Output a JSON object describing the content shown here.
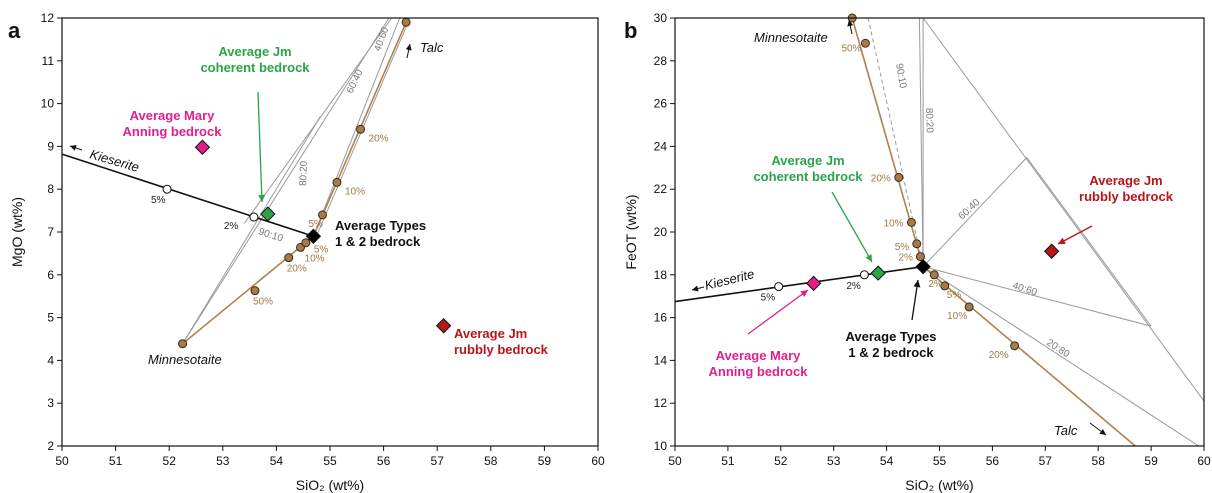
{
  "colors": {
    "frame": "#111111",
    "grid_line": "#9a9a9a",
    "talc_line": "#b0824f",
    "talc_dot": "#a57b4e",
    "kieserite_line": "#111111",
    "mary_anning": "#e0208a",
    "jm_coherent": "#2aa44a",
    "jm_rubbly": "#b5161c",
    "types12": "#000000"
  },
  "chart_data": [
    {
      "panel": "a",
      "type": "scatter",
      "xlabel": "SiO₂ (wt%)",
      "ylabel": "MgO (wt%)",
      "xlim": [
        50,
        60
      ],
      "ylim": [
        2,
        12
      ],
      "xticks": [
        "50",
        "51",
        "52",
        "53",
        "54",
        "55",
        "56",
        "57",
        "58",
        "59",
        "60"
      ],
      "yticks": [
        "2",
        "3",
        "4",
        "5",
        "6",
        "7",
        "8",
        "9",
        "10",
        "11",
        "12"
      ],
      "points": [
        {
          "id": "mary",
          "label_lines": [
            "Average Mary",
            "Anning bedrock"
          ],
          "x": 52.62,
          "y": 8.98,
          "color": "#e0208a"
        },
        {
          "id": "coherent",
          "label_lines": [
            "Average Jm",
            "coherent bedrock"
          ],
          "x": 53.84,
          "y": 7.42,
          "color": "#2aa44a"
        },
        {
          "id": "types",
          "label_lines": [
            "Average Types",
            "1 & 2 bedrock"
          ],
          "x": 54.69,
          "y": 6.9,
          "color": "#000000"
        },
        {
          "id": "rubbly",
          "label_lines": [
            "Average Jm",
            "rubbly bedrock"
          ],
          "x": 57.12,
          "y": 4.81,
          "color": "#b5161c"
        }
      ],
      "kieserite_line": {
        "label": "Kieserite",
        "from": [
          50.0,
          8.82
        ],
        "to": [
          54.69,
          6.9
        ]
      },
      "kieserite_marks": [
        {
          "label": "5%",
          "x": 51.96,
          "y": 8.0
        },
        {
          "label": "2%",
          "x": 53.58,
          "y": 7.35
        }
      ],
      "minnesotaite_line": {
        "label": "Minnesotaite",
        "from": [
          52.25,
          4.39
        ],
        "to": [
          54.69,
          6.9
        ]
      },
      "minnesotaite_marks": [
        {
          "label": "50%",
          "x": 53.6,
          "y": 5.63
        },
        {
          "label": "20%",
          "x": 54.23,
          "y": 6.4
        },
        {
          "label": "10%",
          "x": 54.45,
          "y": 6.64
        },
        {
          "label": "5%",
          "x": 54.55,
          "y": 6.75
        }
      ],
      "talc_line": {
        "label": "Talc",
        "from": [
          54.69,
          6.9
        ],
        "to": [
          56.42,
          11.9
        ]
      },
      "talc_marks": [
        {
          "label": "5%",
          "x": 54.86,
          "y": 7.4
        },
        {
          "label": "10%",
          "x": 55.13,
          "y": 8.16
        },
        {
          "label": "20%",
          "x": 55.57,
          "y": 9.4
        },
        {
          "label": "",
          "x": 56.42,
          "y": 11.9
        }
      ],
      "mixing_lines": [
        {
          "label": "90:10",
          "from": [
            52.25,
            4.39
          ],
          "to": [
            56.1,
            12.0
          ]
        },
        {
          "label": "80:20",
          "from": [
            52.25,
            4.39
          ],
          "to": [
            54.82,
            9.7
          ]
        },
        {
          "label": "60:40",
          "from": [
            53.4,
            7.2
          ],
          "to": [
            56.15,
            12.0
          ]
        },
        {
          "label": "40:60",
          "from": [
            54.69,
            6.9
          ],
          "to": [
            56.3,
            12.0
          ]
        }
      ]
    },
    {
      "panel": "b",
      "type": "scatter",
      "xlabel": "SiO₂ (wt%)",
      "ylabel": "FeOT (wt%)",
      "xlim": [
        50,
        60
      ],
      "ylim": [
        10,
        30
      ],
      "xticks": [
        "50",
        "51",
        "52",
        "53",
        "54",
        "55",
        "56",
        "57",
        "58",
        "59",
        "60"
      ],
      "yticks": [
        "10",
        "12",
        "14",
        "16",
        "18",
        "20",
        "22",
        "24",
        "26",
        "28",
        "30"
      ],
      "points": [
        {
          "id": "mary",
          "label_lines": [
            "Average Mary",
            "Anning bedrock"
          ],
          "x": 52.62,
          "y": 17.6,
          "color": "#e0208a"
        },
        {
          "id": "coherent",
          "label_lines": [
            "Average Jm",
            "coherent bedrock"
          ],
          "x": 53.84,
          "y": 18.08,
          "color": "#2aa44a"
        },
        {
          "id": "types",
          "label_lines": [
            "Average Types",
            "1 & 2 bedrock"
          ],
          "x": 54.69,
          "y": 18.38,
          "color": "#000000"
        },
        {
          "id": "rubbly",
          "label_lines": [
            "Average Jm",
            "rubbly bedrock"
          ],
          "x": 57.12,
          "y": 19.1,
          "color": "#b5161c"
        }
      ],
      "kieserite_line": {
        "label": "Kieserite",
        "from": [
          50.0,
          16.75
        ],
        "to": [
          54.69,
          18.38
        ]
      },
      "kieserite_marks": [
        {
          "label": "5%",
          "x": 51.96,
          "y": 17.45
        },
        {
          "label": "2%",
          "x": 53.58,
          "y": 18.0
        }
      ],
      "minnesotaite_line": {
        "label": "Minnesotaite",
        "from": [
          53.35,
          30.0
        ],
        "to": [
          54.69,
          18.38
        ]
      },
      "minnesotaite_marks": [
        {
          "label": "50%",
          "x": 53.6,
          "y": 28.82
        },
        {
          "label": "20%",
          "x": 54.23,
          "y": 22.55
        },
        {
          "label": "10%",
          "x": 54.47,
          "y": 20.45
        },
        {
          "label": "5%",
          "x": 54.57,
          "y": 19.45
        },
        {
          "label": "2%",
          "x": 54.64,
          "y": 18.85
        }
      ],
      "talc_line": {
        "label": "Talc",
        "from": [
          54.69,
          18.38
        ],
        "to": [
          58.7,
          10.0
        ]
      },
      "talc_marks": [
        {
          "label": "2%",
          "x": 54.9,
          "y": 18.0
        },
        {
          "label": "5%",
          "x": 55.1,
          "y": 17.48
        },
        {
          "label": "10%",
          "x": 55.56,
          "y": 16.5
        },
        {
          "label": "20%",
          "x": 56.42,
          "y": 14.68
        }
      ],
      "mixing_lines": [
        {
          "label": "90:10",
          "from": [
            53.65,
            30.0
          ],
          "to": [
            54.69,
            18.38
          ],
          "dashed": true
        },
        {
          "label": "80:20",
          "from": [
            54.62,
            30.0
          ],
          "to": [
            54.69,
            18.38
          ]
        },
        {
          "label": "60:40",
          "from": [
            54.69,
            18.38
          ],
          "to": [
            56.65,
            23.48
          ]
        },
        {
          "label": "40:60",
          "from": [
            54.69,
            18.38
          ],
          "to": [
            59.0,
            15.6
          ]
        },
        {
          "label": "20:80",
          "from": [
            54.69,
            18.38
          ],
          "to": [
            59.9,
            10.0
          ]
        }
      ],
      "outline_lines": [
        {
          "from": [
            54.69,
            30.0
          ],
          "to": [
            54.69,
            18.38
          ]
        },
        {
          "from": [
            54.69,
            30.0
          ],
          "to": [
            60.0,
            12.1
          ]
        },
        {
          "from": [
            56.65,
            23.48
          ],
          "to": [
            59.0,
            15.6
          ]
        }
      ]
    }
  ],
  "annotations": {
    "panel_a_letter": "a",
    "panel_b_letter": "b",
    "kieserite": "Kieserite",
    "talc": "Talc",
    "minnesotaite": "Minnesotaite",
    "mix_90_10": "90:10",
    "mix_80_20": "80:20",
    "mix_60_40": "60:40",
    "mix_40_60": "40:60",
    "mix_20_80": "20:80"
  }
}
